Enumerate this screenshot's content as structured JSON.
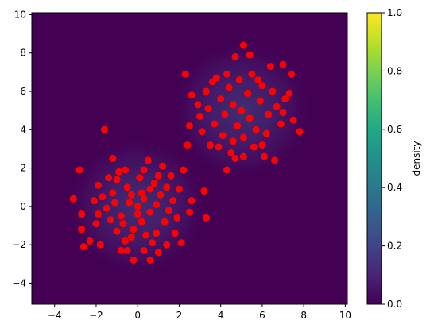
{
  "chart_data": {
    "type": "scatter",
    "title": "",
    "xlabel": "",
    "ylabel": "",
    "xlim": [
      -5.1,
      10.1
    ],
    "ylim": [
      -5.1,
      10.1
    ],
    "xticks": [
      -4,
      -2,
      0,
      2,
      4,
      6,
      8,
      10
    ],
    "yticks": [
      -4,
      -2,
      0,
      2,
      4,
      6,
      8,
      10
    ],
    "xtick_labels": [
      "−4",
      "−2",
      "0",
      "2",
      "4",
      "6",
      "8",
      "10"
    ],
    "ytick_labels": [
      "−4",
      "−2",
      "0",
      "2",
      "4",
      "6",
      "8",
      "10"
    ],
    "background": {
      "type": "heatmap",
      "colormap": "viridis",
      "description": "density of two Gaussian clusters",
      "centers": [
        [
          0,
          0
        ],
        [
          5,
          5
        ]
      ]
    },
    "colorbar": {
      "label": "density",
      "range": [
        0.0,
        1.0
      ],
      "ticks": [
        0.0,
        0.2,
        0.4,
        0.6,
        0.8,
        1.0
      ],
      "tick_labels": [
        "0.0",
        "0.2",
        "0.4",
        "0.6",
        "0.8",
        "1.0"
      ]
    },
    "marker_color": "#ff0000",
    "series": [
      {
        "name": "",
        "points": [
          [
            -1.6,
            4.0
          ],
          [
            -2.8,
            1.9
          ],
          [
            -3.1,
            0.4
          ],
          [
            -2.7,
            -0.4
          ],
          [
            -2.7,
            -1.2
          ],
          [
            -2.6,
            -2.1
          ],
          [
            -2.3,
            -1.8
          ],
          [
            -1.8,
            -2.0
          ],
          [
            -0.8,
            -2.3
          ],
          [
            -0.5,
            -2.3
          ],
          [
            -0.2,
            -2.8
          ],
          [
            0.3,
            -2.3
          ],
          [
            0.6,
            -2.8
          ],
          [
            1.0,
            -2.4
          ],
          [
            1.4,
            -2.0
          ],
          [
            2.1,
            -1.9
          ],
          [
            3.3,
            -0.6
          ],
          [
            2.6,
            0.3
          ],
          [
            2.5,
            -0.3
          ],
          [
            3.2,
            0.8
          ],
          [
            2.2,
            1.9
          ],
          [
            -1.2,
            2.5
          ],
          [
            -1.4,
            1.5
          ],
          [
            -1.9,
            1.1
          ],
          [
            -0.6,
            1.9
          ],
          [
            0.5,
            2.4
          ],
          [
            1.2,
            2.1
          ],
          [
            1.6,
            1.6
          ],
          [
            2.0,
            0.9
          ],
          [
            -1.0,
            -1.3
          ],
          [
            -0.3,
            -1.6
          ],
          [
            0.9,
            -1.4
          ],
          [
            1.8,
            -1.4
          ],
          [
            -2.0,
            -0.9
          ],
          [
            -2.1,
            0.3
          ],
          [
            0.0,
            0.0
          ],
          [
            0.3,
            0.4
          ],
          [
            -0.4,
            0.2
          ],
          [
            0.6,
            -0.3
          ],
          [
            -0.8,
            -0.5
          ],
          [
            1.1,
            0.6
          ],
          [
            -1.2,
            0.7
          ],
          [
            0.2,
            -0.8
          ],
          [
            -0.5,
            1.0
          ],
          [
            0.8,
            1.2
          ],
          [
            1.5,
            -0.2
          ],
          [
            -1.5,
            -0.1
          ],
          [
            0.1,
            1.5
          ],
          [
            -0.2,
            -1.2
          ],
          [
            1.3,
            -0.8
          ],
          [
            -1.0,
            1.4
          ],
          [
            0.6,
            0.9
          ],
          [
            -0.7,
            -0.9
          ],
          [
            1.7,
            0.3
          ],
          [
            -1.7,
            0.5
          ],
          [
            0.4,
            -1.5
          ],
          [
            -0.3,
            0.6
          ],
          [
            0.9,
            0.1
          ],
          [
            -1.1,
            0.2
          ],
          [
            0.0,
            -0.4
          ],
          [
            1.0,
            1.6
          ],
          [
            -0.9,
            1.8
          ],
          [
            0.3,
            1.9
          ],
          [
            -0.6,
            -1.8
          ],
          [
            0.7,
            -1.9
          ],
          [
            1.9,
            -0.6
          ],
          [
            -1.9,
            -0.4
          ],
          [
            1.4,
            1.0
          ],
          [
            -1.3,
            -0.7
          ],
          [
            0.2,
            0.7
          ],
          [
            2.3,
            6.9
          ],
          [
            3.8,
            6.7
          ],
          [
            4.7,
            7.8
          ],
          [
            5.1,
            8.4
          ],
          [
            5.4,
            7.9
          ],
          [
            6.4,
            7.3
          ],
          [
            7.0,
            7.4
          ],
          [
            7.4,
            6.9
          ],
          [
            2.6,
            5.8
          ],
          [
            2.5,
            4.2
          ],
          [
            2.4,
            3.2
          ],
          [
            3.5,
            3.2
          ],
          [
            3.9,
            3.1
          ],
          [
            4.7,
            2.5
          ],
          [
            4.5,
            2.8
          ],
          [
            4.3,
            1.9
          ],
          [
            5.1,
            2.6
          ],
          [
            5.6,
            3.1
          ],
          [
            6.0,
            3.2
          ],
          [
            6.1,
            2.6
          ],
          [
            6.6,
            2.4
          ],
          [
            7.5,
            4.5
          ],
          [
            7.8,
            3.9
          ],
          [
            7.3,
            5.9
          ],
          [
            5.0,
            5.0
          ],
          [
            4.6,
            5.3
          ],
          [
            5.4,
            4.6
          ],
          [
            4.2,
            4.8
          ],
          [
            5.9,
            5.5
          ],
          [
            4.8,
            4.2
          ],
          [
            5.3,
            5.9
          ],
          [
            4.0,
            5.6
          ],
          [
            6.3,
            4.8
          ],
          [
            3.7,
            4.3
          ],
          [
            5.7,
            4.0
          ],
          [
            4.4,
            6.2
          ],
          [
            6.0,
            6.3
          ],
          [
            3.4,
            5.1
          ],
          [
            6.7,
            5.2
          ],
          [
            5.1,
            3.6
          ],
          [
            4.9,
            6.6
          ],
          [
            3.3,
            6.0
          ],
          [
            6.9,
            4.3
          ],
          [
            4.1,
            3.7
          ],
          [
            5.5,
            6.9
          ],
          [
            3.0,
            4.7
          ],
          [
            7.1,
            5.6
          ],
          [
            4.6,
            3.4
          ],
          [
            6.2,
            3.8
          ],
          [
            3.6,
            6.5
          ],
          [
            5.8,
            6.6
          ],
          [
            2.9,
            5.3
          ],
          [
            6.5,
            6.0
          ],
          [
            4.3,
            6.9
          ],
          [
            3.1,
            3.9
          ],
          [
            7.0,
            4.9
          ]
        ]
      }
    ]
  }
}
